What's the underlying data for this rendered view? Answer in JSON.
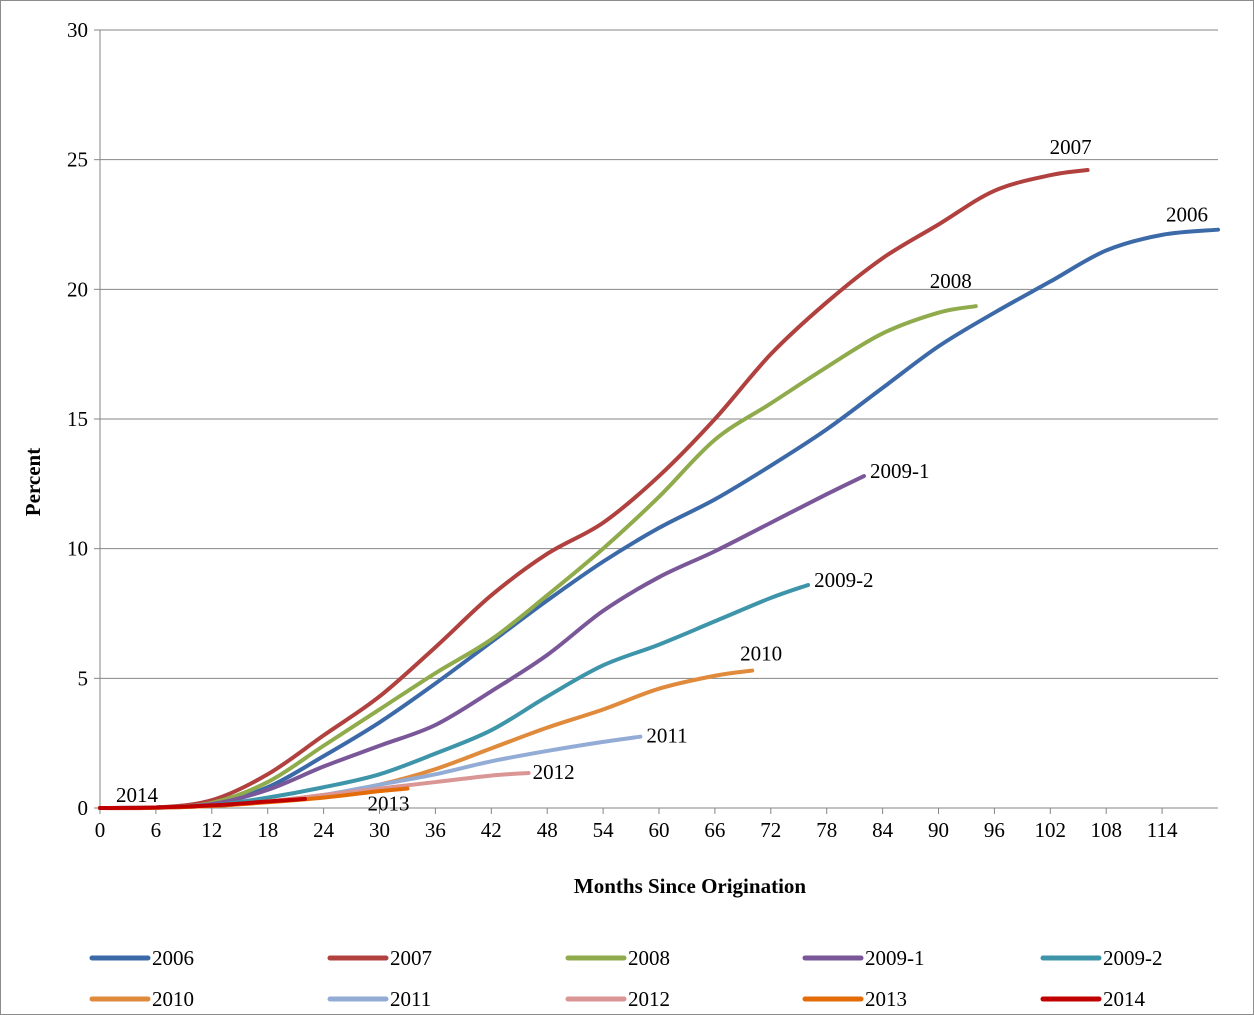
{
  "chart_data": {
    "type": "line",
    "title": "",
    "xlabel": "Months Since Origination",
    "ylabel": "Percent",
    "xlim": [
      0,
      120
    ],
    "ylim": [
      0,
      30
    ],
    "x_ticks": [
      0,
      6,
      12,
      18,
      24,
      30,
      36,
      42,
      48,
      54,
      60,
      66,
      72,
      78,
      84,
      90,
      96,
      102,
      108,
      114
    ],
    "y_ticks": [
      0,
      5,
      10,
      15,
      20,
      25,
      30
    ],
    "grid": "horizontal",
    "legend_position": "bottom",
    "series": [
      {
        "name": "2006",
        "color": "#3c6aa8",
        "end_label": "2006",
        "points": [
          [
            0,
            0
          ],
          [
            6,
            0.02
          ],
          [
            12,
            0.15
          ],
          [
            18,
            0.8
          ],
          [
            24,
            2.0
          ],
          [
            30,
            3.3
          ],
          [
            36,
            4.8
          ],
          [
            42,
            6.4
          ],
          [
            48,
            8.0
          ],
          [
            54,
            9.5
          ],
          [
            60,
            10.8
          ],
          [
            66,
            11.9
          ],
          [
            72,
            13.2
          ],
          [
            78,
            14.6
          ],
          [
            84,
            16.2
          ],
          [
            90,
            17.8
          ],
          [
            96,
            19.1
          ],
          [
            102,
            20.3
          ],
          [
            108,
            21.5
          ],
          [
            114,
            22.1
          ],
          [
            120,
            22.3
          ]
        ]
      },
      {
        "name": "2007",
        "color": "#b0413e",
        "end_label": "2007",
        "points": [
          [
            0,
            0
          ],
          [
            6,
            0.02
          ],
          [
            12,
            0.3
          ],
          [
            18,
            1.3
          ],
          [
            24,
            2.8
          ],
          [
            30,
            4.3
          ],
          [
            36,
            6.2
          ],
          [
            42,
            8.2
          ],
          [
            48,
            9.8
          ],
          [
            54,
            11.0
          ],
          [
            60,
            12.8
          ],
          [
            66,
            15.0
          ],
          [
            72,
            17.5
          ],
          [
            78,
            19.5
          ],
          [
            84,
            21.2
          ],
          [
            90,
            22.5
          ],
          [
            96,
            23.8
          ],
          [
            102,
            24.4
          ],
          [
            106,
            24.6
          ]
        ]
      },
      {
        "name": "2008",
        "color": "#8fab4b",
        "end_label": "2008",
        "points": [
          [
            0,
            0
          ],
          [
            6,
            0.02
          ],
          [
            12,
            0.2
          ],
          [
            18,
            1.0
          ],
          [
            24,
            2.4
          ],
          [
            30,
            3.8
          ],
          [
            36,
            5.2
          ],
          [
            42,
            6.5
          ],
          [
            48,
            8.2
          ],
          [
            54,
            10.0
          ],
          [
            60,
            12.0
          ],
          [
            66,
            14.2
          ],
          [
            72,
            15.6
          ],
          [
            78,
            17.0
          ],
          [
            84,
            18.3
          ],
          [
            90,
            19.1
          ],
          [
            94,
            19.35
          ]
        ]
      },
      {
        "name": "2009-1",
        "color": "#7a5799",
        "end_label": "2009-1",
        "points": [
          [
            0,
            0
          ],
          [
            6,
            0.02
          ],
          [
            12,
            0.15
          ],
          [
            18,
            0.7
          ],
          [
            24,
            1.6
          ],
          [
            30,
            2.4
          ],
          [
            36,
            3.2
          ],
          [
            42,
            4.5
          ],
          [
            48,
            5.9
          ],
          [
            54,
            7.6
          ],
          [
            60,
            8.9
          ],
          [
            66,
            9.9
          ],
          [
            72,
            11.0
          ],
          [
            78,
            12.1
          ],
          [
            82,
            12.8
          ]
        ]
      },
      {
        "name": "2009-2",
        "color": "#3e95aa",
        "end_label": "2009-2",
        "points": [
          [
            0,
            0
          ],
          [
            6,
            0.01
          ],
          [
            12,
            0.1
          ],
          [
            18,
            0.4
          ],
          [
            24,
            0.8
          ],
          [
            30,
            1.3
          ],
          [
            36,
            2.1
          ],
          [
            42,
            3.0
          ],
          [
            48,
            4.3
          ],
          [
            54,
            5.5
          ],
          [
            60,
            6.3
          ],
          [
            66,
            7.2
          ],
          [
            72,
            8.1
          ],
          [
            76,
            8.6
          ]
        ]
      },
      {
        "name": "2010",
        "color": "#e08a3c",
        "end_label": "2010",
        "points": [
          [
            0,
            0
          ],
          [
            6,
            0.01
          ],
          [
            12,
            0.08
          ],
          [
            18,
            0.25
          ],
          [
            24,
            0.5
          ],
          [
            30,
            0.9
          ],
          [
            36,
            1.5
          ],
          [
            42,
            2.3
          ],
          [
            48,
            3.1
          ],
          [
            54,
            3.8
          ],
          [
            60,
            4.6
          ],
          [
            66,
            5.1
          ],
          [
            70,
            5.3
          ]
        ]
      },
      {
        "name": "2011",
        "color": "#93acd6",
        "end_label": "2011",
        "points": [
          [
            0,
            0
          ],
          [
            6,
            0.01
          ],
          [
            12,
            0.08
          ],
          [
            18,
            0.25
          ],
          [
            24,
            0.5
          ],
          [
            30,
            0.9
          ],
          [
            36,
            1.3
          ],
          [
            42,
            1.8
          ],
          [
            48,
            2.2
          ],
          [
            54,
            2.55
          ],
          [
            58,
            2.75
          ]
        ]
      },
      {
        "name": "2012",
        "color": "#d99694",
        "end_label": "2012",
        "points": [
          [
            0,
            0
          ],
          [
            6,
            0.01
          ],
          [
            12,
            0.08
          ],
          [
            18,
            0.25
          ],
          [
            24,
            0.5
          ],
          [
            30,
            0.75
          ],
          [
            36,
            1.0
          ],
          [
            42,
            1.25
          ],
          [
            46,
            1.35
          ]
        ]
      },
      {
        "name": "2013",
        "color": "#e36c09",
        "end_label": "2013",
        "points": [
          [
            0,
            0
          ],
          [
            6,
            0.01
          ],
          [
            12,
            0.08
          ],
          [
            18,
            0.22
          ],
          [
            24,
            0.4
          ],
          [
            30,
            0.65
          ],
          [
            33,
            0.75
          ]
        ]
      },
      {
        "name": "2014",
        "color": "#c00000",
        "end_label": "2014",
        "points": [
          [
            0,
            0
          ],
          [
            6,
            0.02
          ],
          [
            12,
            0.1
          ],
          [
            18,
            0.25
          ],
          [
            22,
            0.35
          ]
        ]
      }
    ]
  }
}
